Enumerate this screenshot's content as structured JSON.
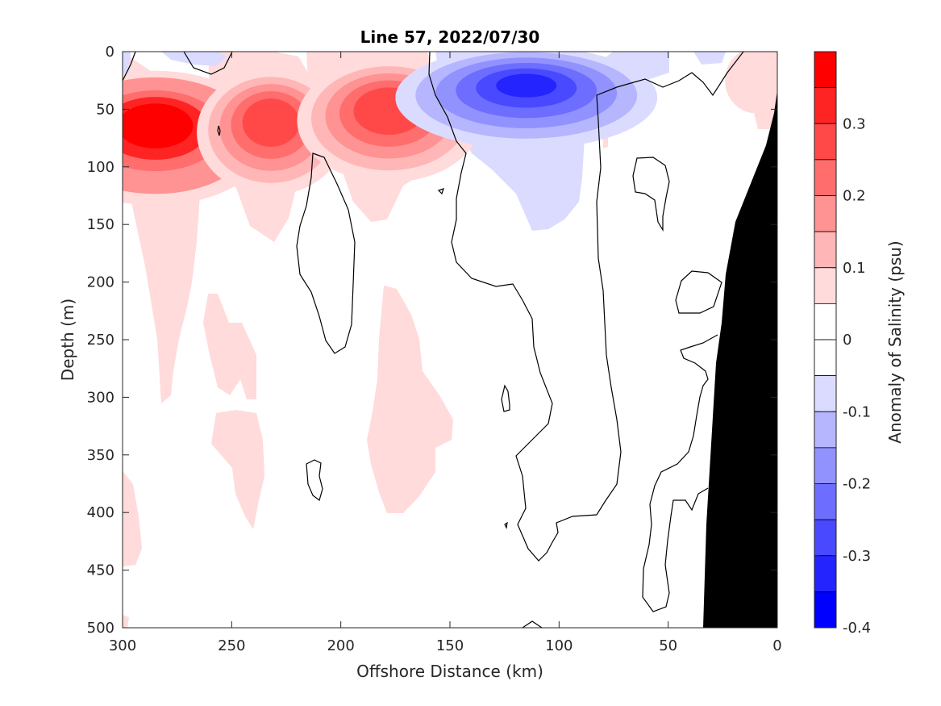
{
  "chart_data": {
    "type": "heatmap",
    "title": "Line 57, 2022/07/30",
    "xlabel": "Offshore Distance (km)",
    "ylabel": "Depth (m)",
    "colorbar_label": "Anomaly of Salinity (psu)",
    "xlim": [
      300,
      0
    ],
    "ylim": [
      0,
      500
    ],
    "y_reversed": true,
    "x_reversed": true,
    "x_ticks": [
      "300",
      "250",
      "200",
      "150",
      "100",
      "50",
      "0"
    ],
    "y_ticks": [
      "0",
      "50",
      "100",
      "150",
      "200",
      "250",
      "300",
      "350",
      "400",
      "450",
      "500"
    ],
    "colorbar_ticks": [
      "0.3",
      "0.2",
      "0.1",
      "0",
      "-0.1",
      "-0.2",
      "-0.3",
      "-0.4"
    ],
    "colorbar_range": [
      -0.4,
      0.4
    ],
    "colormap": {
      "positive_max": "#ff0000",
      "negative_max": "#0000ff",
      "zero": "#ffffff",
      "bathymetry": "#000000"
    },
    "anomaly_features": [
      {
        "sign": "positive",
        "center_km": 285,
        "center_depth_m": 75,
        "peak": 0.4
      },
      {
        "sign": "positive",
        "center_km": 232,
        "center_depth_m": 70,
        "peak": 0.3
      },
      {
        "sign": "positive",
        "center_km": 178,
        "center_depth_m": 60,
        "peak": 0.3
      },
      {
        "sign": "negative",
        "center_km": 115,
        "center_depth_m": 40,
        "peak": -0.35
      },
      {
        "sign": "positive",
        "center_km": 10,
        "center_depth_m": 25,
        "peak": 0.1
      }
    ],
    "bathymetry_depth_m": [
      [
        0,
        35
      ],
      [
        10,
        100
      ],
      [
        20,
        150
      ],
      [
        25,
        200
      ],
      [
        30,
        330
      ],
      [
        33,
        500
      ]
    ]
  }
}
